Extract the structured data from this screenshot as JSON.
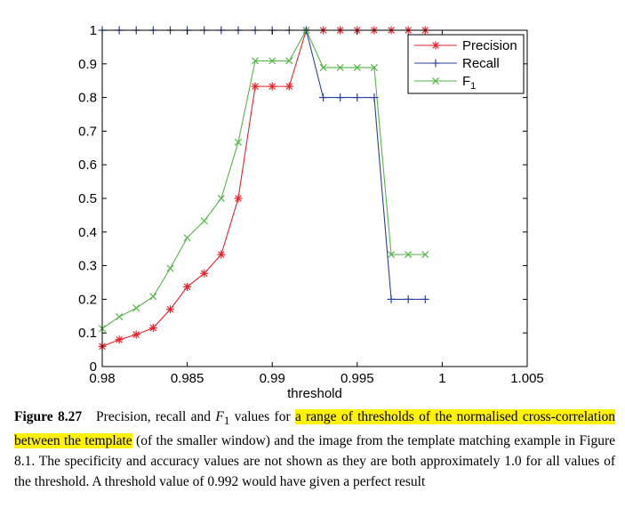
{
  "chart_data": {
    "type": "line",
    "title": "",
    "xlabel": "threshold",
    "ylabel": "",
    "xlim": [
      0.98,
      1.005
    ],
    "ylim": [
      0,
      1
    ],
    "xticks": [
      "0.98",
      "0.985",
      "0.99",
      "0.995",
      "1",
      "1.005"
    ],
    "yticks": [
      "0",
      "0.1",
      "0.2",
      "0.3",
      "0.4",
      "0.5",
      "0.6",
      "0.7",
      "0.8",
      "0.9",
      "1"
    ],
    "x": [
      0.98,
      0.981,
      0.982,
      0.983,
      0.984,
      0.985,
      0.986,
      0.987,
      0.988,
      0.989,
      0.99,
      0.991,
      0.992,
      0.993,
      0.994,
      0.995,
      0.996,
      0.997,
      0.998,
      0.999
    ],
    "grid": false,
    "legend_position": "top-right",
    "series": [
      {
        "name": "Precision",
        "color": "#e8212b",
        "marker": "asterisk",
        "values": [
          0.06,
          0.08,
          0.095,
          0.115,
          0.17,
          0.237,
          0.277,
          0.333,
          0.5,
          0.833,
          0.833,
          0.833,
          1,
          1,
          1,
          1,
          1,
          1,
          1,
          1
        ]
      },
      {
        "name": "Recall",
        "color": "#2a40a0",
        "marker": "plus",
        "values": [
          1,
          1,
          1,
          1,
          1,
          1,
          1,
          1,
          1,
          1,
          1,
          1,
          1,
          0.8,
          0.8,
          0.8,
          0.8,
          0.2,
          0.2,
          0.2
        ]
      },
      {
        "name": "F",
        "name_sub": "1",
        "color": "#55b648",
        "marker": "x",
        "values": [
          0.113,
          0.148,
          0.174,
          0.208,
          0.292,
          0.383,
          0.433,
          0.5,
          0.667,
          0.909,
          0.909,
          0.909,
          1,
          0.889,
          0.889,
          0.889,
          0.889,
          0.333,
          0.333,
          0.333
        ]
      }
    ]
  },
  "caption": {
    "label": "Figure 8.27",
    "pre": "Precision, recall and ",
    "f_symbol": "F",
    "f_sub": "1",
    "mid": " values for ",
    "highlight": "a range of thresholds of the normalised cross-correlation between the template",
    "post": " (of the smaller window) and the image from the template matching example in Figure 8.1. The specificity and accuracy values are not shown as they are both approximately 1.0 for all values of the threshold. A threshold value of 0.992 would have given a perfect result"
  }
}
